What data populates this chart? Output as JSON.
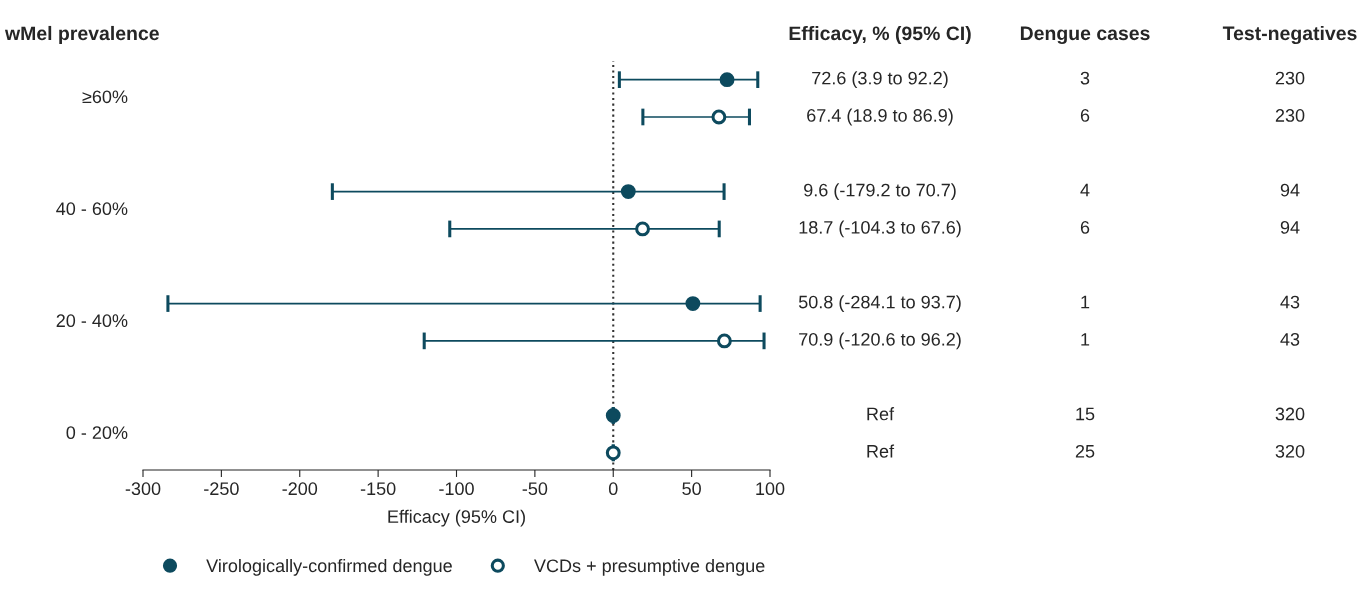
{
  "chart_data": {
    "type": "scatter",
    "orientation": "horizontal",
    "ylabel": "wMel prevalence",
    "xlabel": "Efficacy (95% CI)",
    "categories": [
      null,
      null,
      null,
      null,
      null,
      null,
      null,
      null,
      null,
      null,
      null
    ],
    "series": [
      {
        "name": "Virologically-confirmed dengue",
        "color": "#0d4a5e",
        "values": [
          72.6,
          null,
          null,
          9.6,
          null,
          null,
          50.8,
          null,
          null,
          0,
          null
        ],
        "errors": [
          [
            3.9,
            92.2
          ],
          null,
          null,
          [
            -179.2,
            70.7
          ],
          null,
          null,
          [
            -284.1,
            93.7
          ],
          null,
          null,
          null,
          null
        ]
      },
      {
        "name": "VCDs + presumptive dengue",
        "color": "#0d4a5e",
        "values": [
          null,
          67.4,
          null,
          null,
          18.7,
          null,
          null,
          70.9,
          null,
          null,
          0
        ],
        "errors": [
          null,
          [
            18.9,
            86.9
          ],
          null,
          null,
          [
            -104.3,
            67.6
          ],
          null,
          null,
          [
            -120.6,
            96.2
          ],
          null,
          null,
          null
        ]
      }
    ],
    "annotations": [
      "≥60%",
      "40 - 60%",
      "20 - 40%",
      "0 - 20%",
      "Efficacy, % (95% CI)",
      "Dengue cases",
      "Test-negatives",
      "72.6 (3.9 to 92.2)",
      "3",
      "230",
      "67.4 (18.9 to 86.9)",
      "6",
      "230",
      "9.6 (-179.2 to 70.7)",
      "4",
      "94",
      "18.7 (-104.3 to 67.6)",
      "6",
      "94",
      "50.8 (-284.1 to 93.7)",
      "1",
      "43",
      "70.9 (-120.6 to 96.2)",
      "1",
      "43",
      "Ref",
      "15",
      "320",
      "Ref",
      "25",
      "320"
    ],
    "xlim": [
      -300,
      100
    ],
    "xticks": [
      -300,
      -250,
      -200,
      -150,
      -100,
      -50,
      0,
      50,
      100
    ],
    "ref_lines": [
      {
        "axis": "x",
        "value": 0,
        "color": "#333333",
        "line_style": "dotted"
      }
    ],
    "marker": "circle",
    "grid": false,
    "legend": "bottom"
  }
}
